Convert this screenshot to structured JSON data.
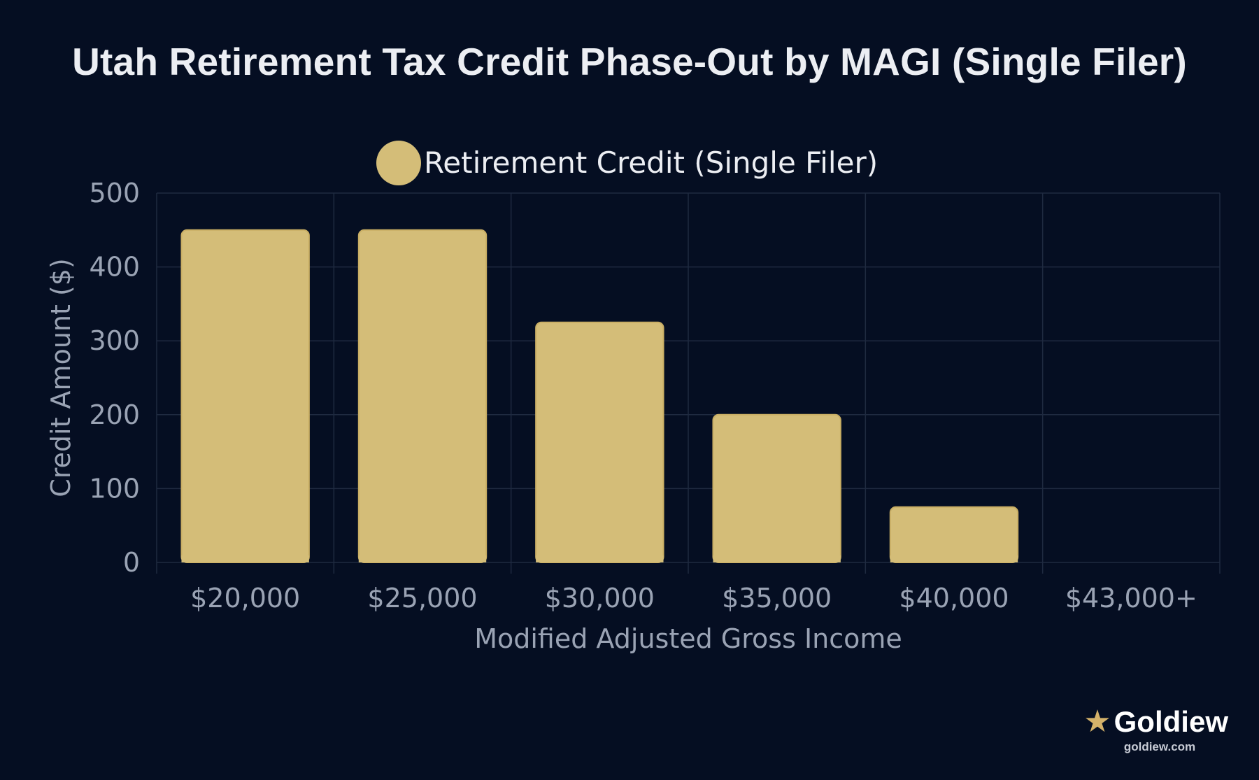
{
  "colors": {
    "background": "#050e22",
    "bar_fill": "#d4bd78",
    "bar_border": "#c9ae64",
    "grid": "#1f2a40",
    "text_primary": "#eceef3",
    "text_muted": "#9aa3b4",
    "brand_star": "#d4b26a"
  },
  "chart_data": {
    "type": "bar",
    "title": "Utah Retirement Tax Credit Phase-Out by MAGI (Single Filer)",
    "xlabel": "Modified Adjusted Gross Income",
    "ylabel": "Credit Amount ($)",
    "categories": [
      "$20,000",
      "$25,000",
      "$30,000",
      "$35,000",
      "$40,000",
      "$43,000+"
    ],
    "series": [
      {
        "name": "Retirement Credit (Single Filer)",
        "values": [
          450,
          450,
          325,
          200,
          75,
          0
        ]
      }
    ],
    "ylim": [
      0,
      500
    ],
    "yticks": [
      0,
      100,
      200,
      300,
      400,
      500
    ],
    "grid": true,
    "legend_position": "top-center"
  },
  "brand": {
    "icon": "star-icon",
    "star_glyph": "★",
    "name": "Goldiew",
    "url": "goldiew.com"
  }
}
